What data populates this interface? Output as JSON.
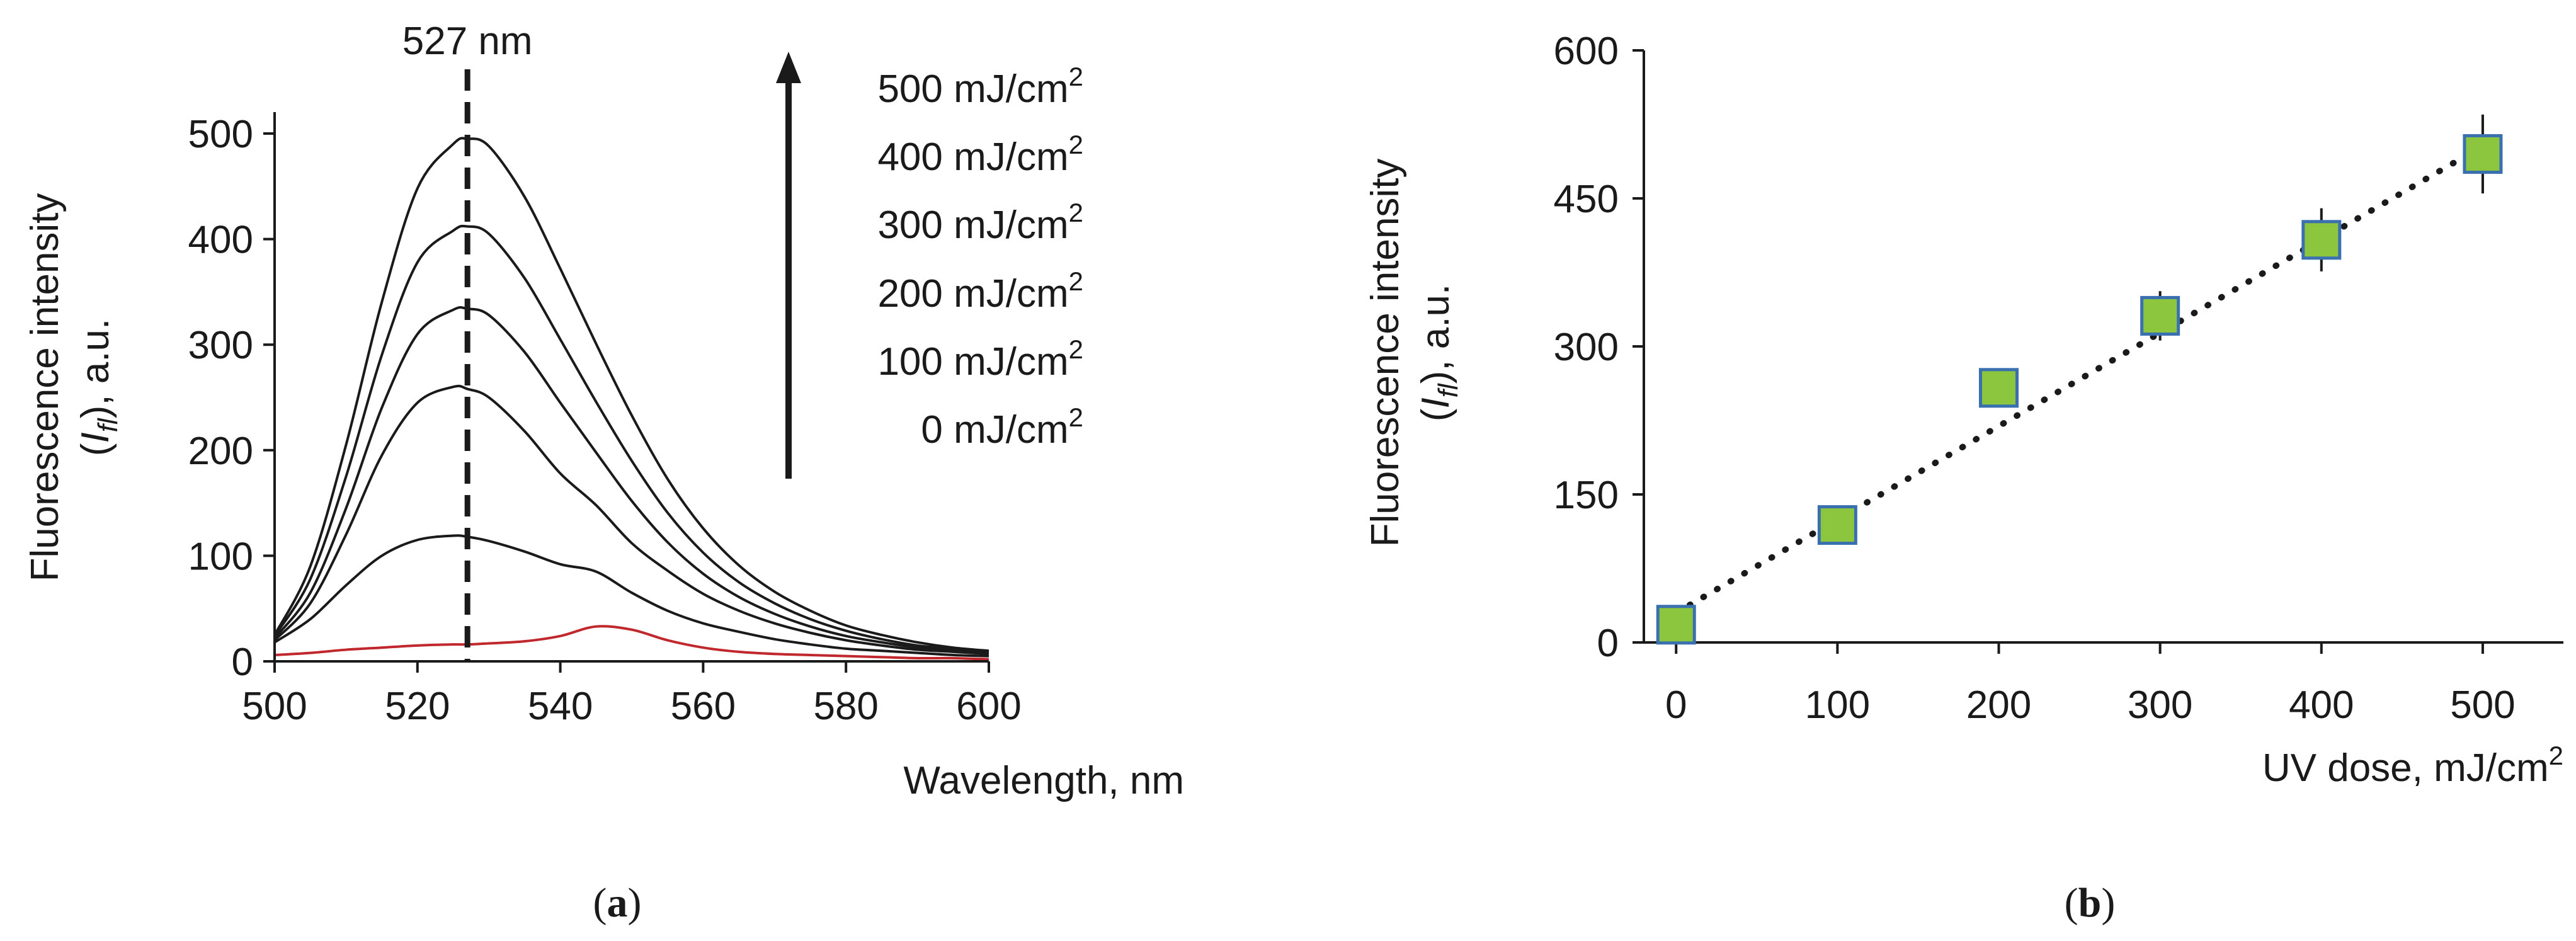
{
  "colors": {
    "axis": "#1a1a1a",
    "curve": "#1a1a1a",
    "baseline_curve": "#c0282d",
    "marker_fill": "#8cc63f",
    "marker_edge": "#3a6fb0"
  },
  "chart_data": [
    {
      "id": "a",
      "type": "line",
      "panel_label_parts": [
        "(",
        "a",
        ")"
      ],
      "xlabel": "Wavelength, nm",
      "ylabel": "Fluorescence intensity",
      "ylabel_line2": {
        "open": "(",
        "sym": "I",
        "sub": "fl",
        "close": "), a.u."
      },
      "xlim": [
        500,
        600
      ],
      "ylim": [
        0,
        500
      ],
      "xticks": [
        "500",
        "520",
        "540",
        "560",
        "580",
        "600"
      ],
      "yticks": [
        "0",
        "100",
        "200",
        "300",
        "400",
        "500"
      ],
      "peak_marker": {
        "x": 527,
        "label": "527 nm"
      },
      "legend_title_arrow": "increasing dose (arrow up)",
      "legend_entries": [
        {
          "value": "500",
          "unit": " mJ/cm",
          "sup": "2"
        },
        {
          "value": "400",
          "unit": " mJ/cm",
          "sup": "2"
        },
        {
          "value": "300",
          "unit": " mJ/cm",
          "sup": "2"
        },
        {
          "value": "200",
          "unit": " mJ/cm",
          "sup": "2"
        },
        {
          "value": "100",
          "unit": " mJ/cm",
          "sup": "2"
        },
        {
          "value": "0",
          "unit": " mJ/cm",
          "sup": "2"
        }
      ],
      "x": [
        500,
        505,
        510,
        515,
        520,
        525,
        527,
        530,
        535,
        540,
        545,
        550,
        555,
        560,
        565,
        570,
        575,
        580,
        585,
        590,
        595,
        600
      ],
      "series": [
        {
          "name": "0 mJ/cm2",
          "color_key": "baseline_curve",
          "values": [
            6,
            8,
            11,
            13,
            15,
            16,
            16,
            17,
            19,
            24,
            33,
            30,
            20,
            13,
            9,
            7,
            6,
            5,
            4,
            3,
            3,
            2
          ]
        },
        {
          "name": "100 mJ/cm2",
          "color_key": "curve",
          "values": [
            18,
            40,
            72,
            100,
            115,
            119,
            118,
            114,
            104,
            92,
            85,
            65,
            48,
            36,
            28,
            21,
            16,
            12,
            10,
            8,
            6,
            5
          ]
        },
        {
          "name": "200 mJ/cm2",
          "color_key": "curve",
          "values": [
            20,
            55,
            120,
            195,
            245,
            260,
            258,
            250,
            218,
            178,
            148,
            112,
            86,
            64,
            48,
            36,
            27,
            20,
            15,
            11,
            9,
            7
          ]
        },
        {
          "name": "300 mJ/cm2",
          "color_key": "curve",
          "values": [
            22,
            65,
            145,
            240,
            310,
            333,
            334,
            328,
            293,
            245,
            198,
            152,
            113,
            83,
            61,
            45,
            33,
            24,
            18,
            13,
            10,
            8
          ]
        },
        {
          "name": "400 mJ/cm2",
          "color_key": "curve",
          "values": [
            24,
            78,
            175,
            290,
            378,
            408,
            412,
            405,
            363,
            305,
            246,
            190,
            141,
            103,
            75,
            55,
            40,
            29,
            21,
            15,
            12,
            9
          ]
        },
        {
          "name": "500 mJ/cm2",
          "color_key": "curve",
          "values": [
            25,
            90,
            205,
            340,
            448,
            490,
            495,
            488,
            440,
            372,
            301,
            233,
            173,
            126,
            91,
            66,
            48,
            34,
            25,
            18,
            13,
            10
          ]
        }
      ]
    },
    {
      "id": "b",
      "type": "scatter",
      "panel_label_parts": [
        "(",
        "b",
        ")"
      ],
      "xlabel": {
        "text": "UV dose, mJ/cm",
        "sup": "2"
      },
      "ylabel": "Fluorescence intensity",
      "ylabel_line2": {
        "open": "(",
        "sym": "I",
        "sub": "fl",
        "close": "), a.u."
      },
      "xlim": [
        -20,
        550
      ],
      "ylim": [
        0,
        600
      ],
      "xticks": [
        "0",
        "100",
        "200",
        "300",
        "400",
        "500"
      ],
      "yticks": [
        "0",
        "150",
        "300",
        "450",
        "600"
      ],
      "x": [
        0,
        100,
        200,
        300,
        400,
        500
      ],
      "y": [
        18,
        119,
        258,
        331,
        408,
        495
      ],
      "errors": [
        8,
        12,
        15,
        25,
        32,
        40
      ],
      "trendline": {
        "style": "dotted",
        "x": [
          0,
          500
        ],
        "y": [
          30,
          503
        ]
      }
    }
  ]
}
